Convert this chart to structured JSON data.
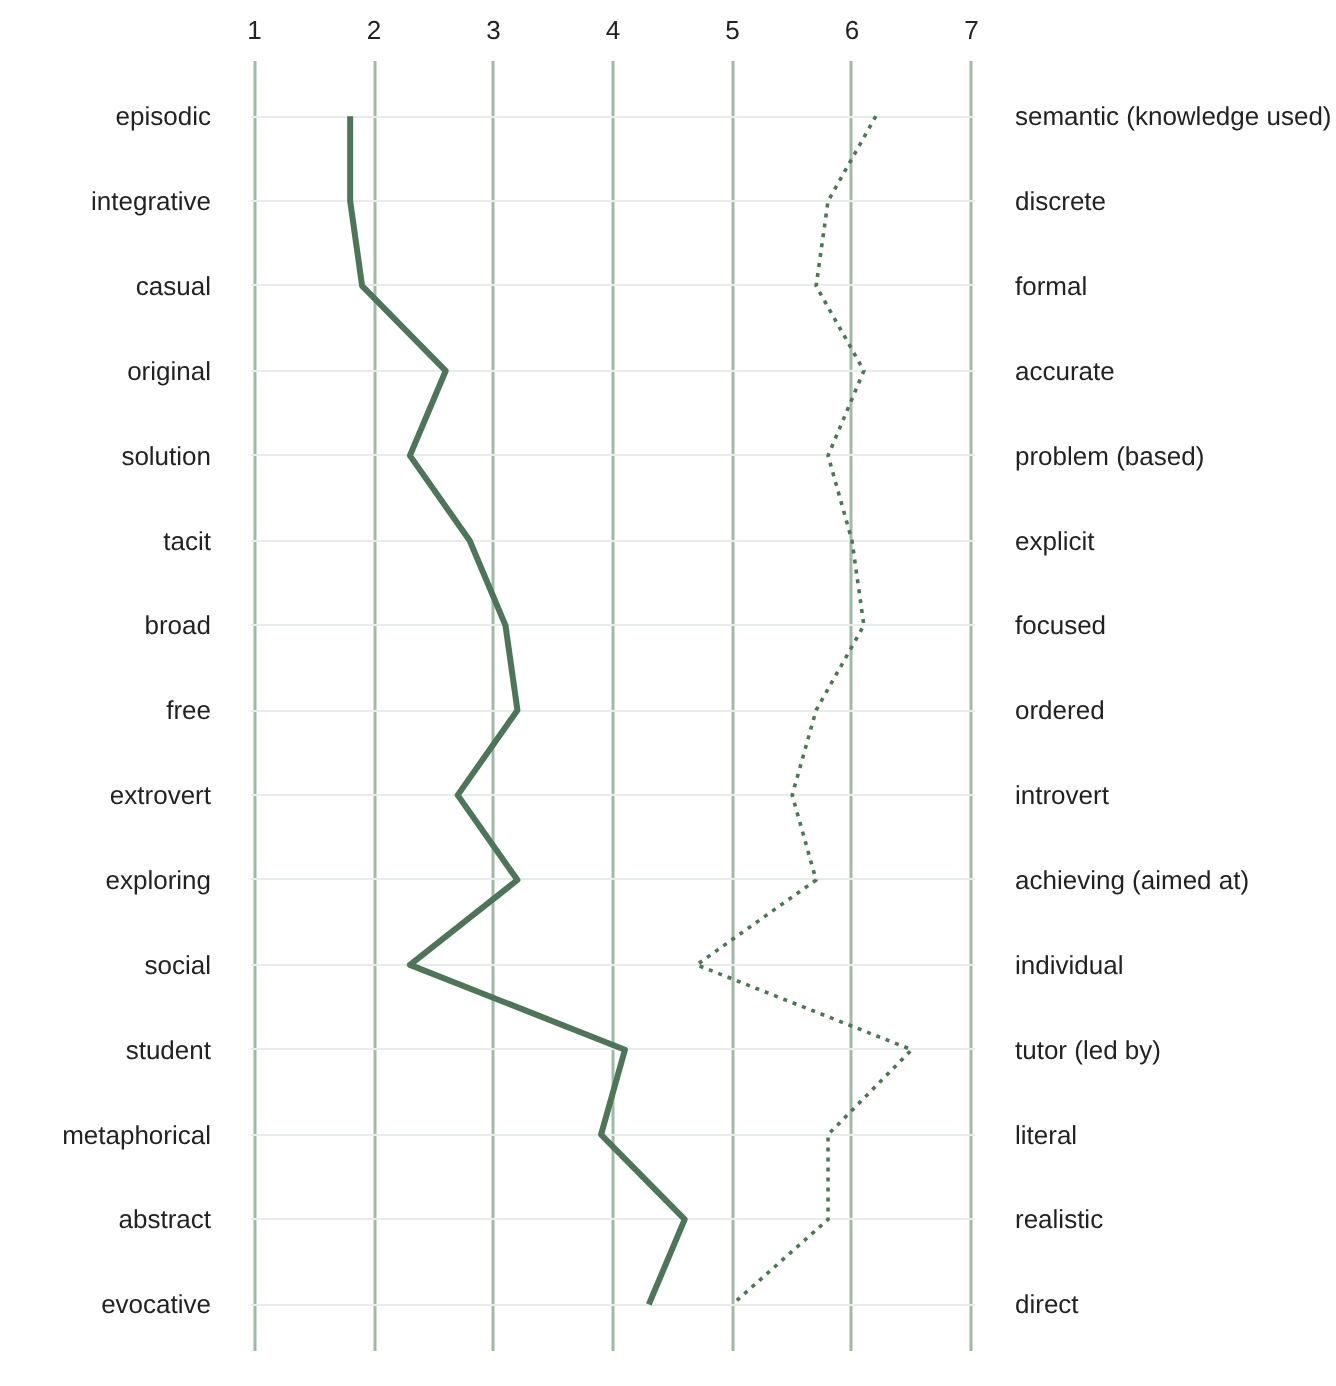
{
  "chart_data": {
    "type": "line",
    "orientation": "horizontal",
    "categories": [
      "episodic",
      "integrative",
      "casual",
      "original",
      "solution",
      "tacit",
      "broad",
      "free",
      "extrovert",
      "exploring",
      "social",
      "student",
      "metaphorical",
      "abstract",
      "evocative"
    ],
    "y2_categories": [
      "semantic (knowledge used)",
      "discrete",
      "formal",
      "accurate",
      "problem (based)",
      "explicit",
      "focused",
      "ordered",
      "introvert",
      "achieving (aimed at)",
      "individual",
      "tutor (led by)",
      "literal",
      "realistic",
      "direct"
    ],
    "series": [
      {
        "color": "#4e7558",
        "line_style": "solid",
        "values": [
          1.8,
          1.8,
          1.9,
          2.6,
          2.3,
          2.8,
          3.1,
          3.2,
          2.7,
          3.2,
          2.3,
          4.1,
          3.9,
          4.6,
          4.3
        ]
      },
      {
        "color": "#4e7558",
        "line_style": "dotted",
        "values": [
          6.2,
          5.8,
          5.7,
          6.1,
          5.8,
          6.0,
          6.1,
          5.7,
          5.5,
          5.7,
          4.7,
          6.5,
          5.8,
          5.8,
          5.0
        ]
      }
    ],
    "xlim": [
      0.97,
      7.03
    ],
    "xticks": [
      1,
      2,
      3,
      4,
      5,
      6,
      7
    ],
    "grid": true,
    "marker": "none"
  }
}
